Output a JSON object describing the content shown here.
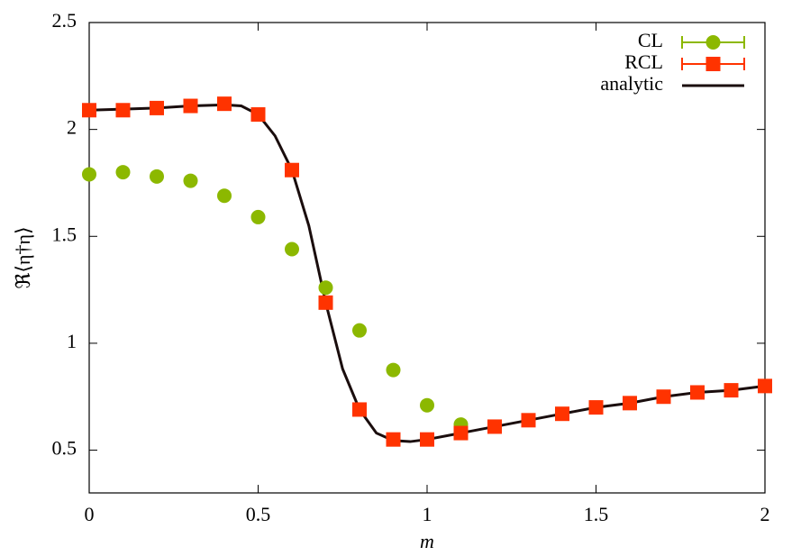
{
  "chart_data": {
    "type": "scatter",
    "xlabel": "m",
    "ylabel": "ℜ⟨η†η⟩",
    "xlim": [
      0,
      2
    ],
    "ylim": [
      0.3,
      2.5
    ],
    "xticks": [
      0,
      0.5,
      1,
      1.5,
      2
    ],
    "yticks": [
      0.5,
      1,
      1.5,
      2,
      2.5
    ],
    "legend": "upper right",
    "series": [
      {
        "name": "CL",
        "color": "#8cb800",
        "mode": "points",
        "marker": "circle",
        "x": [
          0,
          0.1,
          0.2,
          0.3,
          0.4,
          0.5,
          0.6,
          0.7,
          0.8,
          0.9,
          1.0,
          1.1
        ],
        "values": [
          1.79,
          1.8,
          1.78,
          1.76,
          1.69,
          1.59,
          1.44,
          1.26,
          1.06,
          0.875,
          0.71,
          0.62
        ]
      },
      {
        "name": "RCL",
        "color": "#ff3300",
        "mode": "points",
        "marker": "square",
        "x": [
          0,
          0.1,
          0.2,
          0.3,
          0.4,
          0.5,
          0.6,
          0.7,
          0.8,
          0.9,
          1.0,
          1.1,
          1.2,
          1.3,
          1.4,
          1.5,
          1.6,
          1.7,
          1.8,
          1.9,
          2.0
        ],
        "values": [
          2.09,
          2.09,
          2.1,
          2.11,
          2.12,
          2.07,
          1.81,
          1.19,
          0.69,
          0.55,
          0.55,
          0.58,
          0.61,
          0.64,
          0.67,
          0.7,
          0.72,
          0.75,
          0.77,
          0.78,
          0.8
        ]
      },
      {
        "name": "analytic",
        "color": "#1a0d0d",
        "mode": "line",
        "x": [
          0,
          0.1,
          0.2,
          0.3,
          0.4,
          0.45,
          0.5,
          0.55,
          0.6,
          0.65,
          0.7,
          0.75,
          0.8,
          0.85,
          0.9,
          0.95,
          1.0,
          1.1,
          1.2,
          1.3,
          1.4,
          1.5,
          1.6,
          1.7,
          1.8,
          1.9,
          2.0
        ],
        "values": [
          2.09,
          2.095,
          2.1,
          2.11,
          2.115,
          2.11,
          2.07,
          1.97,
          1.81,
          1.55,
          1.19,
          0.88,
          0.69,
          0.58,
          0.545,
          0.54,
          0.55,
          0.58,
          0.61,
          0.64,
          0.67,
          0.7,
          0.72,
          0.75,
          0.77,
          0.78,
          0.8
        ]
      }
    ]
  }
}
